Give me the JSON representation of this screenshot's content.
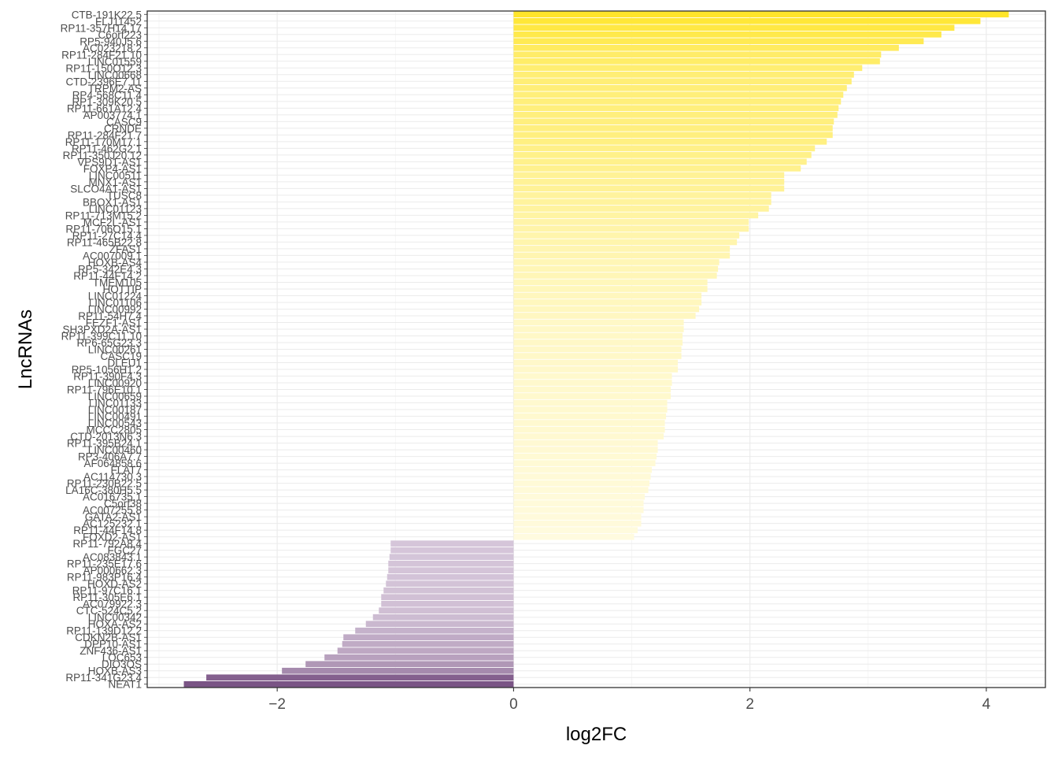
{
  "chart_data": {
    "type": "bar",
    "orientation": "horizontal",
    "xlabel": "log2FC",
    "ylabel": "LncRNAs",
    "xlim": [
      -3.1,
      4.5
    ],
    "x_ticks": [
      -2,
      0,
      2,
      4
    ],
    "grid": true,
    "legend": "none",
    "colors": {
      "up_low": "#fffbe0",
      "up_high": "#ffe52a",
      "down_low": "#d7c8db",
      "down_high": "#7a5485",
      "panel_border": "#333333",
      "grid": "#ebebeb"
    },
    "categories": [
      "CTB-191K22.5",
      "FLJ11452",
      "RP11-357H14.17",
      "C6orf223",
      "RP5-940J5.6",
      "AC023218.2",
      "RP11-284F21.10",
      "LINC01559",
      "RP11-150O12.3",
      "LINC00668",
      "CTD-2396E7.11",
      "TRPM2-AS",
      "RP4-568C11.4",
      "RP1-309K20.5",
      "RP11-661A12.4",
      "AP003774.1",
      "CASC9",
      "CRNDE",
      "RP11-284F21.7",
      "RP11-170M17.1",
      "RP11-462G2.1",
      "RP11-350J20.12",
      "VPS9D1-AS1",
      "FOXP4-AS1",
      "LINC00511",
      "MNX1-AS1",
      "SLCO4A1-AS1",
      "TUSC8",
      "BBOX1-AS1",
      "LINC01123",
      "RP11-713M15.2",
      "MCF2L-AS1",
      "RP11-706O15.1",
      "RP11-27C14.4",
      "RP11-465B22.8",
      "ZFAS1",
      "AC007009.1",
      "HOXB-AS4",
      "RP5-342E4.3",
      "RP11-44F14.2",
      "TMEM105",
      "HOTTIP",
      "LINC01224",
      "LINC01106",
      "LINC00992",
      "RP11-54H7.4",
      "FEZF1-AS1",
      "SH3PXD2A-AS1",
      "RP11-399C11.10",
      "RP6-65G23.3",
      "LINC00261",
      "CASC19",
      "DLEU1",
      "RP5-1056H1.2",
      "RP11-390F4.3",
      "LINC00920",
      "RP11-796E10.1",
      "LINC00659",
      "LINC01133",
      "LINC00187",
      "LINC00491",
      "LINC00543",
      "MCCC2805",
      "CTD-2013N6.3",
      "RP11-395B24.1",
      "LINC00460",
      "RP3-406A7.7",
      "AF064858.6",
      "FLAT7",
      "AC114730.3",
      "RP11-230B22.5",
      "LA16C-380H5.5",
      "AC016735.1",
      "C5orf38",
      "AC007255.8",
      "GATA2-AS1",
      "AC125232.1",
      "RP11-44F14.8",
      "FOXD2-AS1",
      "RP11-792A8.4",
      "FGC27",
      "AC083843.1",
      "RP11-235E17.6",
      "AP000662.3",
      "RP11-983P16.4",
      "HOXD-AS2",
      "RP11-97C16.1",
      "RP11-305E6.1",
      "AC079922.3",
      "CTC-524C5.2",
      "LINC00342",
      "HOXA-AS2",
      "RP11-139D12.2",
      "CDKN2B-AS1",
      "DPP10-AS1",
      "ZNF436-AS1",
      "LOC653",
      "DIO3OS",
      "HOXB-AS3",
      "RP11-341G23.4",
      "NEAT1"
    ],
    "values": [
      4.19,
      3.95,
      3.73,
      3.62,
      3.47,
      3.26,
      3.11,
      3.1,
      2.95,
      2.88,
      2.86,
      2.82,
      2.79,
      2.77,
      2.75,
      2.74,
      2.71,
      2.7,
      2.7,
      2.65,
      2.55,
      2.52,
      2.48,
      2.43,
      2.29,
      2.29,
      2.29,
      2.18,
      2.18,
      2.16,
      2.07,
      1.99,
      1.99,
      1.91,
      1.89,
      1.83,
      1.83,
      1.74,
      1.73,
      1.72,
      1.64,
      1.64,
      1.59,
      1.59,
      1.57,
      1.54,
      1.44,
      1.44,
      1.43,
      1.43,
      1.42,
      1.42,
      1.39,
      1.39,
      1.34,
      1.34,
      1.33,
      1.33,
      1.3,
      1.3,
      1.29,
      1.28,
      1.28,
      1.27,
      1.22,
      1.22,
      1.21,
      1.2,
      1.17,
      1.16,
      1.15,
      1.14,
      1.11,
      1.1,
      1.1,
      1.08,
      1.08,
      1.05,
      1.02,
      -1.04,
      -1.04,
      -1.05,
      -1.06,
      -1.06,
      -1.07,
      -1.08,
      -1.1,
      -1.12,
      -1.12,
      -1.14,
      -1.19,
      -1.25,
      -1.34,
      -1.44,
      -1.45,
      -1.49,
      -1.6,
      -1.76,
      -1.96,
      -2.6,
      -2.79
    ]
  }
}
